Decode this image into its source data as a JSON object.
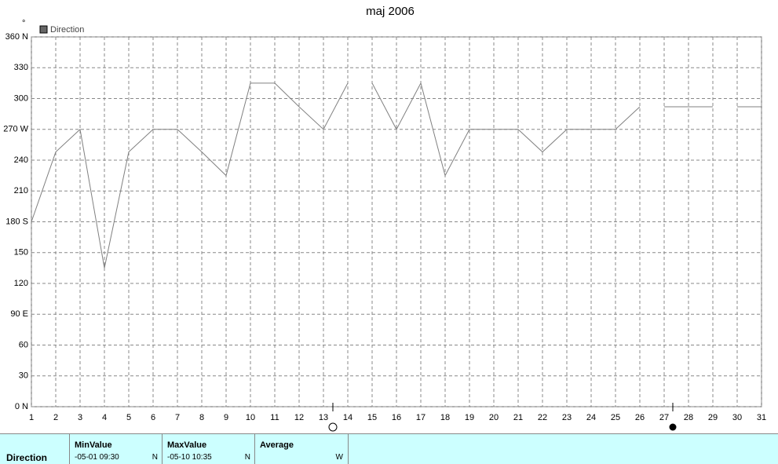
{
  "chart_data": {
    "type": "line",
    "title": "maj 2006",
    "y_unit": "°",
    "x": [
      1,
      2,
      3,
      4,
      5,
      6,
      7,
      8,
      9,
      10,
      11,
      12,
      13,
      14,
      14.5,
      15,
      16,
      17,
      18,
      19,
      20,
      21,
      22,
      23,
      24,
      25,
      26,
      26.5,
      27,
      28,
      29,
      29.5,
      30,
      31
    ],
    "series": [
      {
        "name": "Direction",
        "color": "#808080",
        "values": [
          180,
          248,
          270,
          135,
          248,
          270,
          270,
          248,
          225,
          315,
          315,
          292,
          270,
          315,
          null,
          315,
          270,
          315,
          225,
          270,
          270,
          270,
          248,
          270,
          270,
          270,
          292,
          null,
          292,
          292,
          292,
          null,
          292,
          292
        ]
      }
    ],
    "xlim": [
      1,
      31
    ],
    "xticks": [
      1,
      2,
      3,
      4,
      5,
      6,
      7,
      8,
      9,
      10,
      11,
      12,
      13,
      14,
      15,
      16,
      17,
      18,
      19,
      20,
      21,
      22,
      23,
      24,
      25,
      26,
      27,
      28,
      29,
      30,
      31
    ],
    "ylim": [
      0,
      360
    ],
    "yticks": [
      {
        "value": 0,
        "label": "0 N"
      },
      30,
      60,
      {
        "value": 90,
        "label": "90 E"
      },
      120,
      150,
      {
        "value": 180,
        "label": "180 S"
      },
      210,
      240,
      {
        "value": 270,
        "label": "270 W"
      },
      300,
      330,
      {
        "value": 360,
        "label": "360 N"
      }
    ],
    "grid": true,
    "legend": "top-left"
  },
  "table": {
    "columns": [
      {
        "header": "",
        "label": "Direction"
      },
      {
        "header": "MinValue",
        "time": "-05-01  09:30",
        "dir": "N"
      },
      {
        "header": "MaxValue",
        "time": "-05-10  10:35",
        "dir": "N"
      },
      {
        "header": "Average",
        "dir": "W"
      }
    ]
  }
}
